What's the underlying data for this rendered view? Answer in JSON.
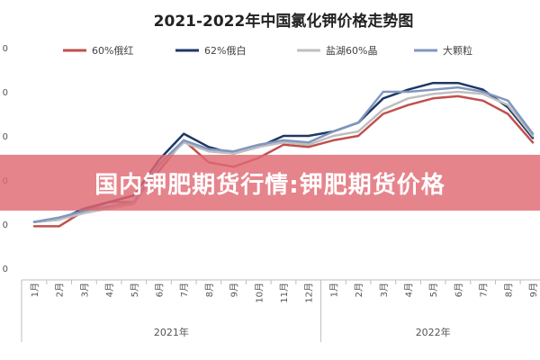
{
  "chart_data": {
    "type": "line",
    "title": "2021-2022年中国氯化钾价格走势图",
    "categories": [
      "1月",
      "2月",
      "3月",
      "4月",
      "5月",
      "6月",
      "7月",
      "8月",
      "9月",
      "10月",
      "11月",
      "12月",
      "1月",
      "2月",
      "3月",
      "4月",
      "5月",
      "6月",
      "7月",
      "8月",
      "9月"
    ],
    "year_groups": [
      {
        "label": "2021年",
        "start": 0,
        "end": 11
      },
      {
        "label": "2022年",
        "start": 12,
        "end": 20
      }
    ],
    "y_tick_labels": [
      "0",
      "0",
      "0",
      "0",
      "0",
      "0"
    ],
    "ylim": [
      0,
      5
    ],
    "grid": false,
    "legend_position": "top",
    "series": [
      {
        "name": "60%俄红",
        "color": "#c0504d",
        "values": [
          0.95,
          0.95,
          1.3,
          1.5,
          1.5,
          2.2,
          2.9,
          2.4,
          2.3,
          2.5,
          2.8,
          2.75,
          2.9,
          3.0,
          3.5,
          3.7,
          3.85,
          3.9,
          3.8,
          3.5,
          2.85
        ]
      },
      {
        "name": "62%俄白",
        "color": "#1f3864",
        "values": [
          1.05,
          1.1,
          1.35,
          1.5,
          1.65,
          2.45,
          3.05,
          2.75,
          2.6,
          2.75,
          3.0,
          3.0,
          3.1,
          3.3,
          3.85,
          4.05,
          4.2,
          4.2,
          4.05,
          3.65,
          2.95
        ]
      },
      {
        "name": "盐湖60%晶",
        "color": "#bfbfbf",
        "values": [
          1.05,
          1.1,
          1.25,
          1.35,
          1.45,
          2.3,
          2.85,
          2.65,
          2.6,
          2.75,
          2.85,
          2.8,
          3.0,
          3.1,
          3.6,
          3.85,
          3.95,
          4.0,
          3.95,
          3.7,
          3.0
        ]
      },
      {
        "name": "大颗粒",
        "color": "#8097bf",
        "values": [
          1.05,
          1.15,
          1.3,
          1.4,
          1.5,
          2.35,
          2.9,
          2.7,
          2.65,
          2.8,
          2.9,
          2.85,
          3.1,
          3.3,
          4.0,
          4.0,
          4.05,
          4.1,
          4.0,
          3.8,
          3.05
        ]
      }
    ]
  },
  "banner": {
    "text": "国内钾肥期货行情:钾肥期货价格"
  }
}
